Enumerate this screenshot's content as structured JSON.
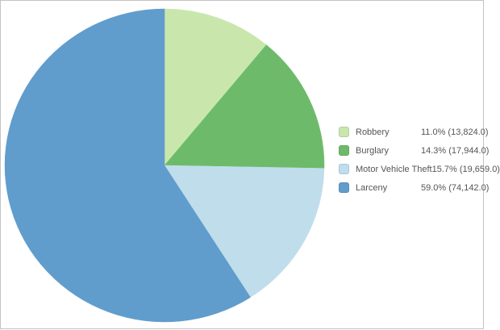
{
  "frame": {
    "background": "#ffffff",
    "border_color": "#c3c3c3"
  },
  "chart_data": {
    "type": "pie",
    "title": "",
    "legend_position": "right",
    "start_angle_deg": 0,
    "direction": "clockwise",
    "categories": [
      "Robbery",
      "Burglary",
      "Motor Vehicle Theft",
      "Larceny"
    ],
    "values": [
      13824.0,
      17944.0,
      19659.0,
      74142.0
    ],
    "slices": [
      {
        "label": "Robbery",
        "value": 13824.0,
        "percent": 11.0,
        "value_text": "11.0% (13,824.0)",
        "color": "#c9e7ad"
      },
      {
        "label": "Burglary",
        "value": 17944.0,
        "percent": 14.3,
        "value_text": "14.3% (17,944.0)",
        "color": "#6dbb6a"
      },
      {
        "label": "Motor Vehicle Theft",
        "value": 19659.0,
        "percent": 15.7,
        "value_text": "15.7% (19,659.0)",
        "color": "#c0ddec"
      },
      {
        "label": "Larceny",
        "value": 74142.0,
        "percent": 59.0,
        "value_text": "59.0% (74,142.0)",
        "color": "#609dcc"
      }
    ]
  }
}
